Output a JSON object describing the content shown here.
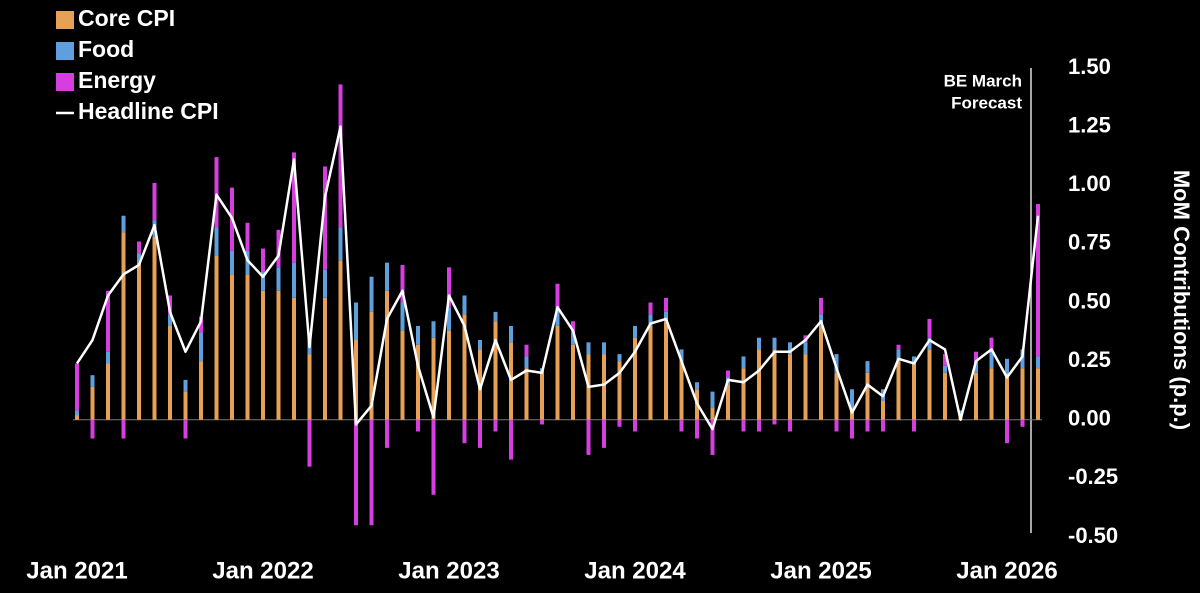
{
  "chart_data": {
    "type": "bar",
    "stacked": true,
    "y_label": "MoM Contributions (p.p.)",
    "annotation_lines": [
      "BE March",
      "Forecast"
    ],
    "categories": [
      "Jan 2021",
      null,
      null,
      null,
      null,
      null,
      null,
      null,
      null,
      null,
      null,
      null,
      "Jan 2022",
      null,
      null,
      null,
      null,
      null,
      null,
      null,
      null,
      null,
      null,
      null,
      "Jan 2023",
      null,
      null,
      null,
      null,
      null,
      null,
      null,
      null,
      null,
      null,
      null,
      "Jan 2024",
      null,
      null,
      null,
      null,
      null,
      null,
      null,
      null,
      null,
      null,
      null,
      "Jan 2025",
      null,
      null,
      null,
      null,
      null,
      null,
      null,
      null,
      null,
      null,
      null,
      "Jan 2026",
      null,
      null
    ],
    "series": [
      {
        "name": "Core CPI",
        "type": "bar",
        "color": "#e6a157",
        "values": [
          0.02,
          0.14,
          0.24,
          0.8,
          0.67,
          0.78,
          0.4,
          0.12,
          0.25,
          0.7,
          0.62,
          0.62,
          0.55,
          0.55,
          0.52,
          0.28,
          0.52,
          0.68,
          0.34,
          0.46,
          0.55,
          0.38,
          0.32,
          0.35,
          0.38,
          0.45,
          0.3,
          0.42,
          0.33,
          0.22,
          0.2,
          0.4,
          0.32,
          0.28,
          0.28,
          0.25,
          0.35,
          0.4,
          0.42,
          0.25,
          0.13,
          0.05,
          0.15,
          0.22,
          0.3,
          0.3,
          0.28,
          0.28,
          0.4,
          0.2,
          0.05,
          0.2,
          0.08,
          0.25,
          0.24,
          0.3,
          0.2,
          0.02,
          0.2,
          0.22,
          0.2,
          0.22,
          0.22
        ]
      },
      {
        "name": "Food",
        "type": "bar",
        "color": "#5f9fde",
        "values": [
          0.02,
          0.05,
          0.05,
          0.07,
          0.04,
          0.07,
          0.05,
          0.05,
          0.12,
          0.12,
          0.1,
          0.1,
          0.08,
          0.1,
          0.15,
          0.08,
          0.12,
          0.14,
          0.16,
          0.15,
          0.12,
          0.12,
          0.08,
          0.07,
          0.1,
          0.08,
          0.04,
          0.04,
          0.07,
          0.05,
          0.02,
          0.08,
          0.05,
          0.05,
          0.05,
          0.03,
          0.05,
          0.05,
          0.04,
          0.05,
          0.03,
          0.07,
          0.03,
          0.05,
          0.05,
          0.05,
          0.05,
          0.05,
          0.05,
          0.08,
          0.08,
          0.05,
          0.05,
          0.05,
          0.03,
          0.05,
          0.03,
          0.02,
          0.05,
          0.08,
          0.06,
          0.08,
          0.05
        ]
      },
      {
        "name": "Energy",
        "type": "bar",
        "color": "#d63ee0",
        "values": [
          0.2,
          -0.08,
          0.26,
          -0.08,
          0.05,
          0.16,
          0.08,
          -0.08,
          0.07,
          0.3,
          0.27,
          0.12,
          0.1,
          0.16,
          0.47,
          -0.2,
          0.44,
          0.61,
          -0.45,
          -0.45,
          -0.12,
          0.16,
          -0.05,
          -0.32,
          0.17,
          -0.1,
          -0.12,
          -0.05,
          -0.17,
          0.05,
          -0.02,
          0.1,
          0.05,
          -0.15,
          -0.12,
          -0.03,
          -0.05,
          0.05,
          0.06,
          -0.05,
          -0.08,
          -0.15,
          0.03,
          -0.05,
          -0.05,
          -0.02,
          -0.05,
          0.03,
          0.07,
          -0.05,
          -0.08,
          -0.05,
          -0.05,
          0.02,
          -0.05,
          0.08,
          0.05,
          0.0,
          0.04,
          0.05,
          -0.1,
          -0.03,
          0.65
        ]
      },
      {
        "name": "Headline CPI",
        "type": "line",
        "color": "#ffffff",
        "values": [
          0.24,
          0.34,
          0.53,
          0.62,
          0.66,
          0.83,
          0.46,
          0.29,
          0.42,
          0.96,
          0.86,
          0.68,
          0.61,
          0.7,
          1.11,
          0.31,
          0.95,
          1.25,
          -0.02,
          0.06,
          0.43,
          0.55,
          0.23,
          0.01,
          0.53,
          0.4,
          0.13,
          0.34,
          0.17,
          0.21,
          0.2,
          0.48,
          0.38,
          0.14,
          0.15,
          0.2,
          0.29,
          0.41,
          0.43,
          0.25,
          0.07,
          -0.04,
          0.17,
          0.16,
          0.21,
          0.29,
          0.29,
          0.34,
          0.42,
          0.22,
          0.03,
          0.15,
          0.1,
          0.26,
          0.24,
          0.34,
          0.3,
          0.0,
          0.25,
          0.3,
          0.18,
          0.27,
          0.87
        ]
      }
    ],
    "ylim": [
      -0.5,
      1.5
    ],
    "yticks": [
      {
        "value": -0.5,
        "label": "-0.50"
      },
      -0.25,
      {
        "value": 0,
        "label": "0.00"
      },
      0.25,
      {
        "value": 0.5,
        "label": "0.50"
      },
      0.75,
      {
        "value": 1,
        "label": "1.00"
      },
      1.25,
      {
        "value": 1.5,
        "label": "1.50"
      }
    ]
  }
}
